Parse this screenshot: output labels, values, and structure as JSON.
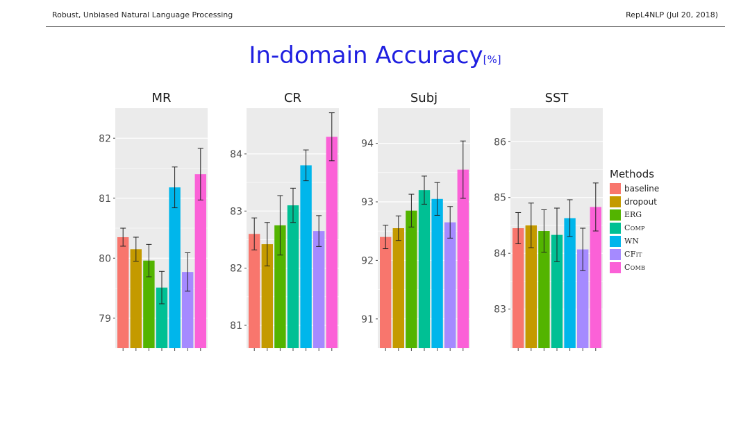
{
  "header": {
    "left": "Robust, Unbiased Natural Language Processing",
    "right": "RepL4NLP (Jul 20, 2018)"
  },
  "slide": {
    "title": "In-domain Accuracy",
    "title_unit": "[%]"
  },
  "colors": {
    "title": "#1f1fe0",
    "panel_bg": "#ebebeb",
    "grid": "#ffffff",
    "series": [
      "#f8766d",
      "#c49a00",
      "#53b400",
      "#00c094",
      "#00b6eb",
      "#a58aff",
      "#fb61d7"
    ]
  },
  "legend": {
    "title": "Methods",
    "items": [
      "baseline",
      "dropout",
      "ERG",
      "Comp",
      "WN",
      "CFit",
      "Comb"
    ]
  },
  "chart_data": [
    {
      "type": "bar",
      "title": "MR",
      "categories": [
        "baseline",
        "dropout",
        "ERG",
        "Comp",
        "WN",
        "CFit",
        "Comb"
      ],
      "values": [
        80.35,
        80.15,
        79.96,
        79.51,
        81.18,
        79.77,
        81.4
      ],
      "error": [
        0.15,
        0.2,
        0.27,
        0.27,
        0.34,
        0.32,
        0.43
      ],
      "ylim": [
        78.5,
        82.5
      ],
      "yticks": [
        79,
        80,
        81,
        82
      ]
    },
    {
      "type": "bar",
      "title": "CR",
      "categories": [
        "baseline",
        "dropout",
        "ERG",
        "Comp",
        "WN",
        "CFit",
        "Comb"
      ],
      "values": [
        82.6,
        82.42,
        82.75,
        83.1,
        83.8,
        82.65,
        84.3
      ],
      "error": [
        0.28,
        0.38,
        0.52,
        0.3,
        0.27,
        0.27,
        0.42
      ],
      "ylim": [
        80.6,
        84.8
      ],
      "yticks": [
        81,
        82,
        83,
        84
      ]
    },
    {
      "type": "bar",
      "title": "Subj",
      "categories": [
        "baseline",
        "dropout",
        "ERG",
        "Comp",
        "WN",
        "CFit",
        "Comb"
      ],
      "values": [
        92.4,
        92.55,
        92.85,
        93.2,
        93.05,
        92.65,
        93.55
      ],
      "error": [
        0.2,
        0.21,
        0.28,
        0.24,
        0.28,
        0.27,
        0.49
      ],
      "ylim": [
        90.5,
        94.6
      ],
      "yticks": [
        91,
        92,
        93,
        94
      ]
    },
    {
      "type": "bar",
      "title": "SST",
      "categories": [
        "baseline",
        "dropout",
        "ERG",
        "Comp",
        "WN",
        "CFit",
        "Comb"
      ],
      "values": [
        84.45,
        84.5,
        84.4,
        84.33,
        84.63,
        84.07,
        84.83
      ],
      "error": [
        0.28,
        0.4,
        0.38,
        0.48,
        0.33,
        0.38,
        0.43
      ],
      "ylim": [
        82.3,
        86.6
      ],
      "yticks": [
        83,
        84,
        85,
        86
      ]
    }
  ]
}
